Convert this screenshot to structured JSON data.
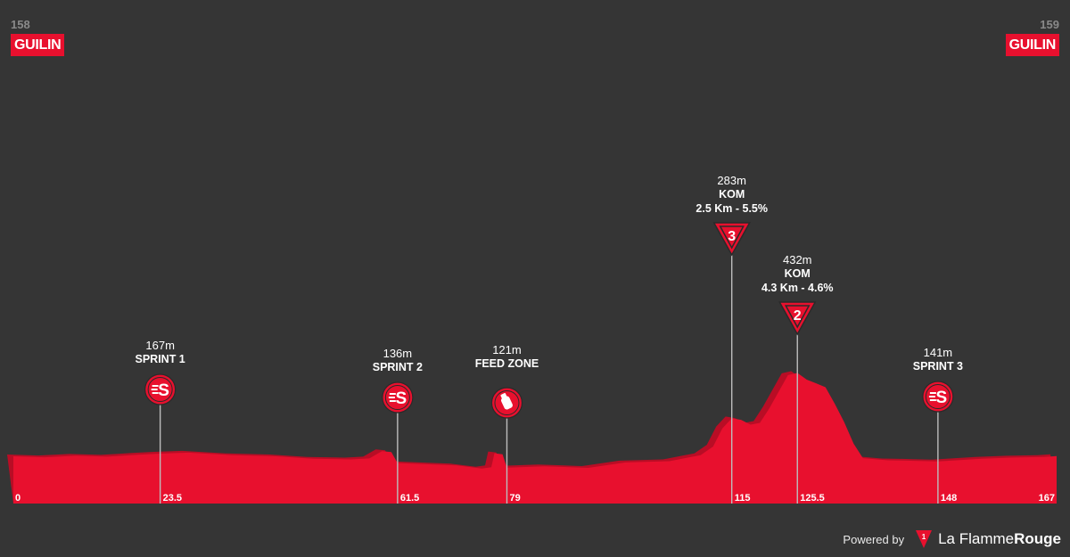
{
  "start": {
    "altitude": "158",
    "town": "GUILIN"
  },
  "finish": {
    "altitude": "159",
    "town": "GUILIN"
  },
  "footer": {
    "powered_by": "Powered by",
    "brand_light": "La Flamme",
    "brand_bold": "Rouge"
  },
  "colors": {
    "background": "#353535",
    "profile": "#e8102e",
    "profile_shadow": "#b90d25",
    "marker_line": "#bdbdbd"
  },
  "chart_data": {
    "type": "area",
    "x_unit": "km",
    "y_unit": "m",
    "xlim": [
      0,
      167
    ],
    "x_ticks": [
      "0",
      "23.5",
      "61.5",
      "79",
      "115",
      "125.5",
      "148",
      "167"
    ],
    "profile": [
      [
        0,
        158
      ],
      [
        5,
        155
      ],
      [
        10,
        160
      ],
      [
        15,
        157
      ],
      [
        20,
        163
      ],
      [
        23.5,
        167
      ],
      [
        28,
        170
      ],
      [
        35,
        162
      ],
      [
        42,
        158
      ],
      [
        48,
        150
      ],
      [
        54,
        148
      ],
      [
        57,
        151
      ],
      [
        59,
        175
      ],
      [
        60.5,
        172
      ],
      [
        61.5,
        136
      ],
      [
        66,
        132
      ],
      [
        71,
        128
      ],
      [
        75,
        118
      ],
      [
        76.5,
        122
      ],
      [
        77,
        168
      ],
      [
        78.3,
        165
      ],
      [
        79,
        121
      ],
      [
        85,
        125
      ],
      [
        92,
        120
      ],
      [
        98,
        138
      ],
      [
        105,
        142
      ],
      [
        110,
        162
      ],
      [
        112,
        190
      ],
      [
        113.5,
        250
      ],
      [
        115,
        283
      ],
      [
        116.5,
        278
      ],
      [
        118,
        262
      ],
      [
        119.5,
        268
      ],
      [
        121,
        315
      ],
      [
        122.5,
        370
      ],
      [
        124,
        425
      ],
      [
        125.5,
        432
      ],
      [
        127,
        410
      ],
      [
        128.5,
        398
      ],
      [
        130,
        385
      ],
      [
        131.5,
        330
      ],
      [
        133,
        270
      ],
      [
        134.5,
        200
      ],
      [
        136,
        152
      ],
      [
        140,
        145
      ],
      [
        145,
        143
      ],
      [
        148,
        141
      ],
      [
        155,
        150
      ],
      [
        160,
        154
      ],
      [
        165,
        156
      ],
      [
        167,
        159
      ]
    ],
    "markers": [
      {
        "km": 23.5,
        "altitude": "167m",
        "title": "SPRINT 1",
        "sub": "",
        "type": "sprint",
        "icon": "sprint-icon"
      },
      {
        "km": 61.5,
        "altitude": "136m",
        "title": "SPRINT 2",
        "sub": "",
        "type": "sprint",
        "icon": "sprint-icon"
      },
      {
        "km": 79,
        "altitude": "121m",
        "title": "FEED ZONE",
        "sub": "",
        "type": "feed",
        "icon": "feed-bottle-icon"
      },
      {
        "km": 115,
        "altitude": "283m",
        "title": "KOM",
        "sub": "2.5 Km - 5.5%",
        "type": "kom",
        "category": "3",
        "icon": "kom-category-icon"
      },
      {
        "km": 125.5,
        "altitude": "432m",
        "title": "KOM",
        "sub": "4.3 Km - 4.6%",
        "type": "kom",
        "category": "2",
        "icon": "kom-category-icon"
      },
      {
        "km": 148,
        "altitude": "141m",
        "title": "SPRINT 3",
        "sub": "",
        "type": "sprint",
        "icon": "sprint-icon"
      }
    ]
  }
}
